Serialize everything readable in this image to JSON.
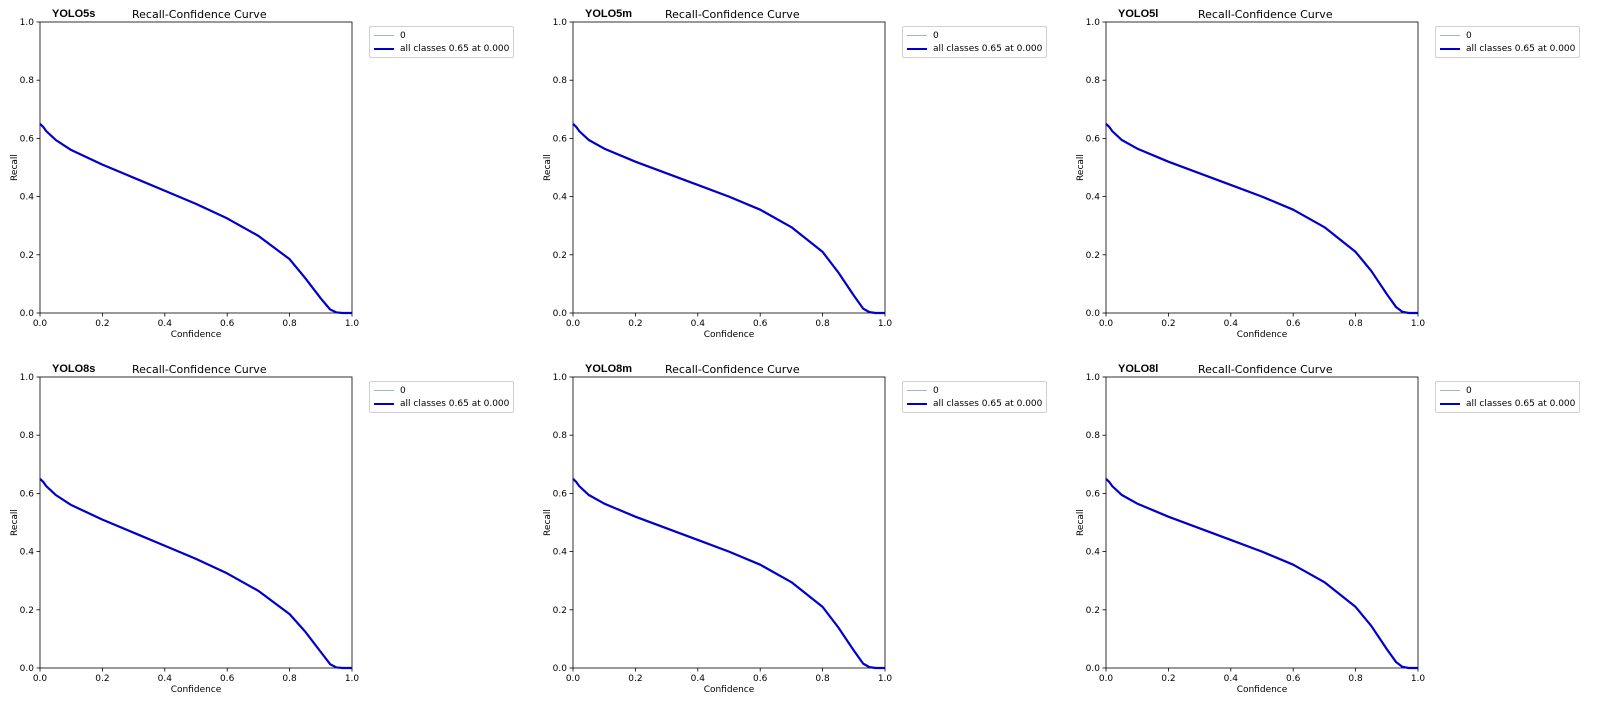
{
  "colors": {
    "series_0": "#9fb5c8",
    "series_all": "#0000cc",
    "axes": "#000000",
    "legend_border": "#d0d0d0"
  },
  "chart_data": [
    {
      "type": "line",
      "model_label": "YOLO5s",
      "title": "Recall-Confidence Curve",
      "xlabel": "Confidence",
      "ylabel": "Recall",
      "xlim": [
        0.0,
        1.0
      ],
      "ylim": [
        0.0,
        1.0
      ],
      "xticks": [
        "0.0",
        "0.2",
        "0.4",
        "0.6",
        "0.8",
        "1.0"
      ],
      "yticks": [
        "0.0",
        "0.2",
        "0.4",
        "0.6",
        "0.8",
        "1.0"
      ],
      "grid": false,
      "legend_position": "outside-right-top",
      "legend": [
        "0",
        "all classes 0.65 at 0.000"
      ],
      "series": [
        {
          "name": "0",
          "color": "#9fb5c8",
          "x": [
            0.0,
            0.01,
            0.02,
            0.05,
            0.1,
            0.2,
            0.3,
            0.4,
            0.5,
            0.6,
            0.7,
            0.8,
            0.85,
            0.9,
            0.93,
            0.95,
            0.97,
            1.0
          ],
          "y": [
            0.65,
            0.64,
            0.625,
            0.595,
            0.56,
            0.51,
            0.465,
            0.42,
            0.375,
            0.325,
            0.265,
            0.185,
            0.12,
            0.05,
            0.012,
            0.002,
            0.0,
            0.0
          ]
        },
        {
          "name": "all classes 0.65 at 0.000",
          "color": "#0000cc",
          "x": [
            0.0,
            0.01,
            0.02,
            0.05,
            0.1,
            0.2,
            0.3,
            0.4,
            0.5,
            0.6,
            0.7,
            0.8,
            0.85,
            0.9,
            0.93,
            0.95,
            0.97,
            1.0
          ],
          "y": [
            0.65,
            0.64,
            0.625,
            0.595,
            0.56,
            0.51,
            0.465,
            0.42,
            0.375,
            0.325,
            0.265,
            0.185,
            0.12,
            0.05,
            0.012,
            0.002,
            0.0,
            0.0
          ]
        }
      ]
    },
    {
      "type": "line",
      "model_label": "YOLO5m",
      "title": "Recall-Confidence Curve",
      "xlabel": "Confidence",
      "ylabel": "Recall",
      "xlim": [
        0.0,
        1.0
      ],
      "ylim": [
        0.0,
        1.0
      ],
      "xticks": [
        "0.0",
        "0.2",
        "0.4",
        "0.6",
        "0.8",
        "1.0"
      ],
      "yticks": [
        "0.0",
        "0.2",
        "0.4",
        "0.6",
        "0.8",
        "1.0"
      ],
      "grid": false,
      "legend_position": "outside-right-top",
      "legend": [
        "0",
        "all classes 0.65 at 0.000"
      ],
      "series": [
        {
          "name": "0",
          "color": "#9fb5c8",
          "x": [
            0.0,
            0.01,
            0.02,
            0.05,
            0.1,
            0.2,
            0.3,
            0.4,
            0.5,
            0.6,
            0.7,
            0.8,
            0.85,
            0.9,
            0.93,
            0.95,
            0.97,
            1.0
          ],
          "y": [
            0.65,
            0.64,
            0.625,
            0.595,
            0.565,
            0.52,
            0.48,
            0.44,
            0.4,
            0.355,
            0.295,
            0.21,
            0.14,
            0.06,
            0.015,
            0.003,
            0.0,
            0.0
          ]
        },
        {
          "name": "all classes 0.65 at 0.000",
          "color": "#0000cc",
          "x": [
            0.0,
            0.01,
            0.02,
            0.05,
            0.1,
            0.2,
            0.3,
            0.4,
            0.5,
            0.6,
            0.7,
            0.8,
            0.85,
            0.9,
            0.93,
            0.95,
            0.97,
            1.0
          ],
          "y": [
            0.65,
            0.64,
            0.625,
            0.595,
            0.565,
            0.52,
            0.48,
            0.44,
            0.4,
            0.355,
            0.295,
            0.21,
            0.14,
            0.06,
            0.015,
            0.003,
            0.0,
            0.0
          ]
        }
      ]
    },
    {
      "type": "line",
      "model_label": "YOLO5l",
      "title": "Recall-Confidence Curve",
      "xlabel": "Confidence",
      "ylabel": "Recall",
      "xlim": [
        0.0,
        1.0
      ],
      "ylim": [
        0.0,
        1.0
      ],
      "xticks": [
        "0.0",
        "0.2",
        "0.4",
        "0.6",
        "0.8",
        "1.0"
      ],
      "yticks": [
        "0.0",
        "0.2",
        "0.4",
        "0.6",
        "0.8",
        "1.0"
      ],
      "grid": false,
      "legend_position": "outside-right-top",
      "legend": [
        "0",
        "all classes 0.65 at 0.000"
      ],
      "series": [
        {
          "name": "0",
          "color": "#9fb5c8",
          "x": [
            0.0,
            0.01,
            0.02,
            0.05,
            0.1,
            0.2,
            0.3,
            0.4,
            0.5,
            0.6,
            0.7,
            0.8,
            0.85,
            0.9,
            0.93,
            0.95,
            0.97,
            1.0
          ],
          "y": [
            0.65,
            0.64,
            0.625,
            0.595,
            0.565,
            0.52,
            0.48,
            0.44,
            0.4,
            0.355,
            0.295,
            0.21,
            0.145,
            0.065,
            0.02,
            0.004,
            0.0,
            0.0
          ]
        },
        {
          "name": "all classes 0.65 at 0.000",
          "color": "#0000cc",
          "x": [
            0.0,
            0.01,
            0.02,
            0.05,
            0.1,
            0.2,
            0.3,
            0.4,
            0.5,
            0.6,
            0.7,
            0.8,
            0.85,
            0.9,
            0.93,
            0.95,
            0.97,
            1.0
          ],
          "y": [
            0.65,
            0.64,
            0.625,
            0.595,
            0.565,
            0.52,
            0.48,
            0.44,
            0.4,
            0.355,
            0.295,
            0.21,
            0.145,
            0.065,
            0.02,
            0.004,
            0.0,
            0.0
          ]
        }
      ]
    },
    {
      "type": "line",
      "model_label": "YOLO8s",
      "title": "Recall-Confidence Curve",
      "xlabel": "Confidence",
      "ylabel": "Recall",
      "xlim": [
        0.0,
        1.0
      ],
      "ylim": [
        0.0,
        1.0
      ],
      "xticks": [
        "0.0",
        "0.2",
        "0.4",
        "0.6",
        "0.8",
        "1.0"
      ],
      "yticks": [
        "0.0",
        "0.2",
        "0.4",
        "0.6",
        "0.8",
        "1.0"
      ],
      "grid": false,
      "legend_position": "outside-right-top",
      "legend": [
        "0",
        "all classes 0.65 at 0.000"
      ],
      "series": [
        {
          "name": "0",
          "color": "#9fb5c8",
          "x": [
            0.0,
            0.01,
            0.02,
            0.05,
            0.1,
            0.2,
            0.3,
            0.4,
            0.5,
            0.6,
            0.7,
            0.8,
            0.85,
            0.9,
            0.93,
            0.95,
            0.97,
            1.0
          ],
          "y": [
            0.65,
            0.64,
            0.625,
            0.595,
            0.56,
            0.51,
            0.465,
            0.42,
            0.375,
            0.325,
            0.265,
            0.185,
            0.125,
            0.055,
            0.013,
            0.002,
            0.0,
            0.0
          ]
        },
        {
          "name": "all classes 0.65 at 0.000",
          "color": "#0000cc",
          "x": [
            0.0,
            0.01,
            0.02,
            0.05,
            0.1,
            0.2,
            0.3,
            0.4,
            0.5,
            0.6,
            0.7,
            0.8,
            0.85,
            0.9,
            0.93,
            0.95,
            0.97,
            1.0
          ],
          "y": [
            0.65,
            0.64,
            0.625,
            0.595,
            0.56,
            0.51,
            0.465,
            0.42,
            0.375,
            0.325,
            0.265,
            0.185,
            0.125,
            0.055,
            0.013,
            0.002,
            0.0,
            0.0
          ]
        }
      ]
    },
    {
      "type": "line",
      "model_label": "YOLO8m",
      "title": "Recall-Confidence Curve",
      "xlabel": "Confidence",
      "ylabel": "Recall",
      "xlim": [
        0.0,
        1.0
      ],
      "ylim": [
        0.0,
        1.0
      ],
      "xticks": [
        "0.0",
        "0.2",
        "0.4",
        "0.6",
        "0.8",
        "1.0"
      ],
      "yticks": [
        "0.0",
        "0.2",
        "0.4",
        "0.6",
        "0.8",
        "1.0"
      ],
      "grid": false,
      "legend_position": "outside-right-top",
      "legend": [
        "0",
        "all classes 0.65 at 0.000"
      ],
      "series": [
        {
          "name": "0",
          "color": "#9fb5c8",
          "x": [
            0.0,
            0.01,
            0.02,
            0.05,
            0.1,
            0.2,
            0.3,
            0.4,
            0.5,
            0.6,
            0.7,
            0.8,
            0.85,
            0.9,
            0.93,
            0.95,
            0.97,
            1.0
          ],
          "y": [
            0.65,
            0.64,
            0.625,
            0.595,
            0.565,
            0.52,
            0.48,
            0.44,
            0.4,
            0.355,
            0.295,
            0.21,
            0.14,
            0.06,
            0.015,
            0.003,
            0.0,
            0.0
          ]
        },
        {
          "name": "all classes 0.65 at 0.000",
          "color": "#0000cc",
          "x": [
            0.0,
            0.01,
            0.02,
            0.05,
            0.1,
            0.2,
            0.3,
            0.4,
            0.5,
            0.6,
            0.7,
            0.8,
            0.85,
            0.9,
            0.93,
            0.95,
            0.97,
            1.0
          ],
          "y": [
            0.65,
            0.64,
            0.625,
            0.595,
            0.565,
            0.52,
            0.48,
            0.44,
            0.4,
            0.355,
            0.295,
            0.21,
            0.14,
            0.06,
            0.015,
            0.003,
            0.0,
            0.0
          ]
        }
      ]
    },
    {
      "type": "line",
      "model_label": "YOLO8l",
      "title": "Recall-Confidence Curve",
      "xlabel": "Confidence",
      "ylabel": "Recall",
      "xlim": [
        0.0,
        1.0
      ],
      "ylim": [
        0.0,
        1.0
      ],
      "xticks": [
        "0.0",
        "0.2",
        "0.4",
        "0.6",
        "0.8",
        "1.0"
      ],
      "yticks": [
        "0.0",
        "0.2",
        "0.4",
        "0.6",
        "0.8",
        "1.0"
      ],
      "grid": false,
      "legend_position": "outside-right-top",
      "legend": [
        "0",
        "all classes 0.65 at 0.000"
      ],
      "series": [
        {
          "name": "0",
          "color": "#9fb5c8",
          "x": [
            0.0,
            0.01,
            0.02,
            0.05,
            0.1,
            0.2,
            0.3,
            0.4,
            0.5,
            0.6,
            0.7,
            0.8,
            0.85,
            0.9,
            0.93,
            0.95,
            0.97,
            1.0
          ],
          "y": [
            0.65,
            0.64,
            0.625,
            0.595,
            0.565,
            0.52,
            0.48,
            0.44,
            0.4,
            0.355,
            0.295,
            0.21,
            0.145,
            0.065,
            0.02,
            0.004,
            0.0,
            0.0
          ]
        },
        {
          "name": "all classes 0.65 at 0.000",
          "color": "#0000cc",
          "x": [
            0.0,
            0.01,
            0.02,
            0.05,
            0.1,
            0.2,
            0.3,
            0.4,
            0.5,
            0.6,
            0.7,
            0.8,
            0.85,
            0.9,
            0.93,
            0.95,
            0.97,
            1.0
          ],
          "y": [
            0.65,
            0.64,
            0.625,
            0.595,
            0.565,
            0.52,
            0.48,
            0.44,
            0.4,
            0.355,
            0.295,
            0.21,
            0.145,
            0.065,
            0.02,
            0.004,
            0.0,
            0.0
          ]
        }
      ]
    }
  ]
}
